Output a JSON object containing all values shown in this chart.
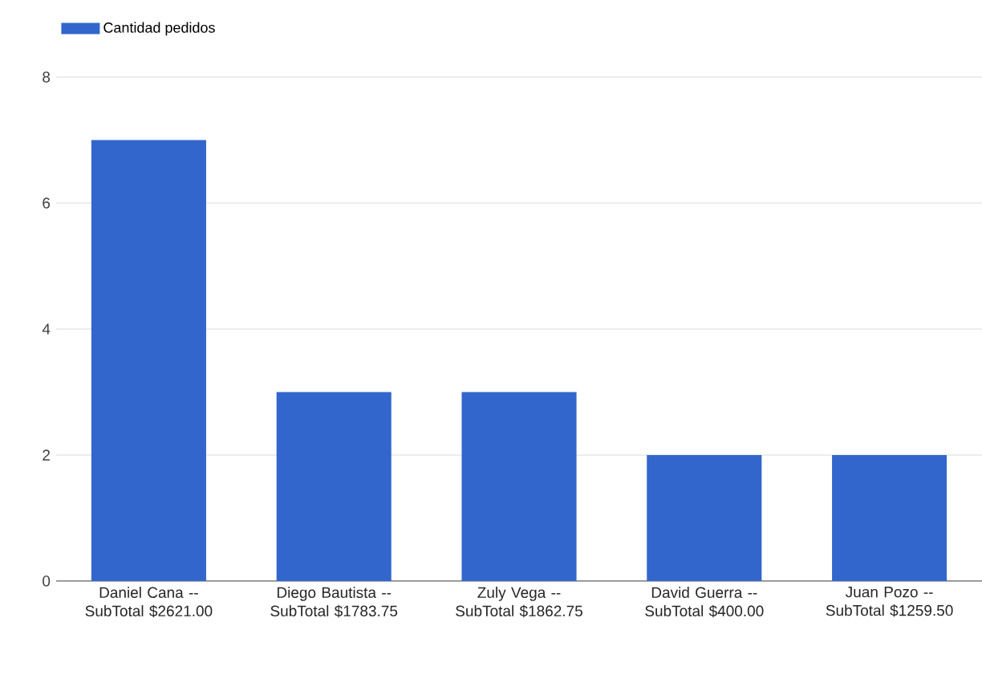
{
  "chart_data": {
    "type": "bar",
    "categories": [
      "Daniel Cana -- SubTotal $2621.00",
      "Diego Bautista -- SubTotal $1783.75",
      "Zuly Vega -- SubTotal $1862.75",
      "David Guerra -- SubTotal $400.00",
      "Juan Pozo -- SubTotal $1259.50"
    ],
    "series": [
      {
        "name": "Cantidad pedidos",
        "color": "#3366cc",
        "values": [
          7,
          3,
          3,
          2,
          2
        ]
      }
    ],
    "ylim": [
      0,
      8
    ],
    "yticks": [
      0,
      2,
      4,
      6,
      8
    ],
    "grid": "y",
    "legend": "top left"
  }
}
